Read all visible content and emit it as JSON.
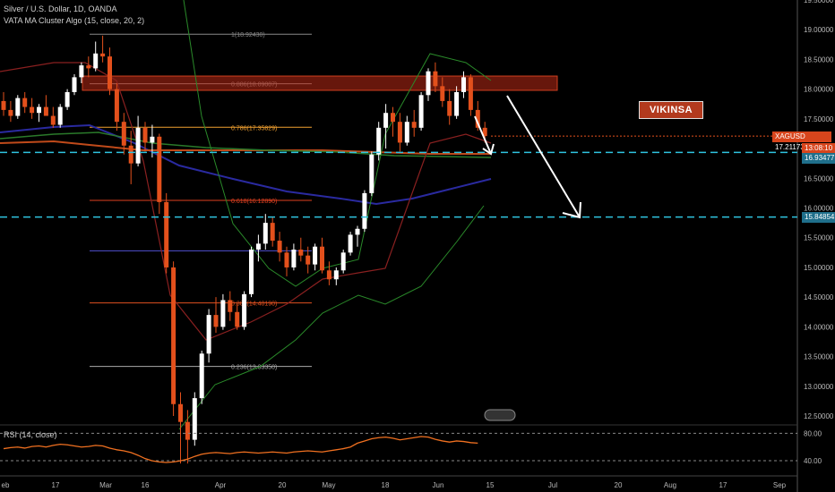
{
  "header": {
    "symbol_line": "Silver / U.S. Dollar, 1D, OANDA",
    "indicator_line": "VATA MA Cluster Algo (15, close, 20, 2)"
  },
  "rsi": {
    "label": "RSI (14, close)",
    "levels": [
      "80.00",
      "40.00"
    ],
    "values": [
      52,
      54,
      55,
      53,
      56,
      57,
      55,
      58,
      60,
      59,
      57,
      55,
      56,
      58,
      57,
      53,
      50,
      48,
      45,
      40,
      34,
      30,
      28,
      27,
      28,
      30,
      33,
      38,
      42,
      44,
      45,
      44,
      43,
      45,
      46,
      45,
      44,
      45,
      46,
      45,
      44,
      46,
      47,
      48,
      47,
      46,
      48,
      50,
      52,
      55,
      62,
      66,
      70,
      72,
      73,
      71,
      68,
      70,
      72,
      74,
      73,
      69,
      66,
      64,
      66,
      65,
      63,
      62
    ]
  },
  "watermark": {
    "text": "VIKINSA"
  },
  "price_tags": {
    "current_symbol": "XAGUSD",
    "current_price": "17.21173",
    "countdown": "13:08:10",
    "level_high": "16.93477",
    "level_low": "15.84854"
  },
  "fib_levels": [
    {
      "label": "1(18.92430)",
      "price": 18.9243,
      "color": "#888888"
    },
    {
      "label": "0.886(18.09007)",
      "price": 18.09007,
      "color": "#ffffff"
    },
    {
      "label": "0.786(17.35829)",
      "price": 17.35829,
      "color": "#f0a030"
    },
    {
      "label": "0.618(16.12890)",
      "price": 16.1289,
      "color": "#e04020"
    },
    {
      "label": "",
      "price": 15.28,
      "color": "#5050d0"
    },
    {
      "label": "0.382(14.40190)",
      "price": 14.4019,
      "color": "#e05020"
    },
    {
      "label": "0.236(13.33350)",
      "price": 13.3335,
      "color": "#aaaaaa"
    }
  ],
  "chart_data": {
    "type": "candlestick",
    "symbol": "XAGUSD",
    "y_axis_ticks": [
      "19.50000",
      "19.00000",
      "18.50000",
      "18.00000",
      "17.50000",
      "17.00000",
      "16.50000",
      "16.00000",
      "15.50000",
      "15.00000",
      "14.50000",
      "14.00000",
      "13.50000",
      "13.00000",
      "12.50000"
    ],
    "ylim": [
      12.35,
      19.5
    ],
    "x_axis_ticks": [
      "eb",
      "17",
      "Mar",
      "16",
      "Apr",
      "20",
      "May",
      "18",
      "Jun",
      "15",
      "Jul",
      "20",
      "Aug",
      "17",
      "Sep"
    ],
    "ohlc": [
      [
        17.8,
        17.95,
        17.55,
        17.65
      ],
      [
        17.65,
        17.8,
        17.45,
        17.55
      ],
      [
        17.55,
        17.9,
        17.5,
        17.85
      ],
      [
        17.85,
        17.95,
        17.6,
        17.7
      ],
      [
        17.7,
        17.85,
        17.5,
        17.6
      ],
      [
        17.6,
        17.75,
        17.45,
        17.7
      ],
      [
        17.7,
        17.9,
        17.6,
        17.55
      ],
      [
        17.55,
        17.7,
        17.35,
        17.4
      ],
      [
        17.4,
        17.75,
        17.35,
        17.7
      ],
      [
        17.7,
        18.0,
        17.65,
        17.95
      ],
      [
        17.95,
        18.25,
        17.9,
        18.2
      ],
      [
        18.2,
        18.45,
        18.1,
        18.4
      ],
      [
        18.4,
        18.55,
        18.2,
        18.35
      ],
      [
        18.35,
        18.8,
        18.3,
        18.6
      ],
      [
        18.6,
        18.9,
        18.45,
        18.55
      ],
      [
        18.55,
        18.7,
        17.9,
        18.0
      ],
      [
        18.0,
        18.1,
        17.3,
        17.45
      ],
      [
        17.45,
        17.6,
        16.9,
        17.05
      ],
      [
        17.05,
        17.3,
        16.4,
        16.75
      ],
      [
        16.75,
        17.55,
        16.7,
        17.35
      ],
      [
        17.35,
        17.45,
        16.95,
        17.1
      ],
      [
        17.1,
        17.4,
        16.85,
        17.2
      ],
      [
        17.2,
        17.25,
        15.9,
        16.1
      ],
      [
        16.1,
        16.25,
        14.9,
        15.0
      ],
      [
        15.0,
        15.1,
        12.5,
        12.7
      ],
      [
        12.7,
        12.9,
        11.7,
        12.4
      ],
      [
        12.4,
        12.6,
        11.7,
        12.1
      ],
      [
        12.1,
        12.9,
        12.0,
        12.8
      ],
      [
        12.8,
        13.6,
        12.7,
        13.55
      ],
      [
        13.55,
        14.3,
        13.4,
        14.2
      ],
      [
        14.2,
        14.5,
        13.9,
        14.0
      ],
      [
        14.0,
        14.55,
        13.95,
        14.45
      ],
      [
        14.45,
        14.6,
        14.1,
        14.25
      ],
      [
        14.25,
        14.4,
        13.95,
        14.0
      ],
      [
        14.0,
        14.6,
        13.95,
        14.55
      ],
      [
        14.55,
        15.35,
        14.5,
        15.3
      ],
      [
        15.3,
        15.55,
        15.1,
        15.4
      ],
      [
        15.4,
        15.9,
        15.3,
        15.75
      ],
      [
        15.75,
        15.85,
        15.35,
        15.45
      ],
      [
        15.45,
        15.6,
        15.1,
        15.25
      ],
      [
        15.25,
        15.35,
        14.85,
        15.0
      ],
      [
        15.0,
        15.4,
        14.95,
        15.3
      ],
      [
        15.3,
        15.5,
        15.1,
        15.2
      ],
      [
        15.2,
        15.35,
        14.9,
        15.05
      ],
      [
        15.05,
        15.4,
        14.95,
        15.35
      ],
      [
        15.35,
        15.5,
        14.9,
        14.95
      ],
      [
        14.95,
        15.1,
        14.7,
        14.8
      ],
      [
        14.8,
        15.0,
        14.7,
        14.95
      ],
      [
        14.95,
        15.3,
        14.9,
        15.25
      ],
      [
        15.25,
        15.6,
        15.2,
        15.55
      ],
      [
        15.55,
        15.7,
        15.35,
        15.65
      ],
      [
        15.65,
        16.3,
        15.6,
        16.25
      ],
      [
        16.25,
        16.95,
        16.2,
        16.9
      ],
      [
        16.9,
        17.45,
        16.8,
        17.35
      ],
      [
        17.35,
        17.75,
        17.0,
        17.6
      ],
      [
        17.6,
        17.7,
        17.2,
        17.45
      ],
      [
        17.45,
        17.6,
        16.95,
        17.1
      ],
      [
        17.1,
        17.55,
        17.05,
        17.45
      ],
      [
        17.45,
        17.65,
        17.2,
        17.35
      ],
      [
        17.35,
        17.95,
        17.3,
        17.9
      ],
      [
        17.9,
        18.35,
        17.8,
        18.3
      ],
      [
        18.3,
        18.45,
        17.95,
        18.05
      ],
      [
        18.05,
        18.2,
        17.7,
        17.8
      ],
      [
        17.8,
        18.0,
        17.4,
        17.55
      ],
      [
        17.55,
        18.05,
        17.5,
        17.95
      ],
      [
        17.95,
        18.3,
        17.85,
        18.2
      ],
      [
        18.2,
        18.25,
        17.55,
        17.65
      ],
      [
        17.65,
        17.8,
        17.3,
        17.35
      ],
      [
        17.35,
        17.45,
        17.1,
        17.21
      ]
    ],
    "series": [
      {
        "name": "",
        "values": [
          16.9,
          16.9,
          16.9,
          16.9,
          16.9,
          16.9,
          16.9,
          16.9,
          16.9,
          16.9
        ]
      },
      {
        "name": "",
        "values": []
      }
    ],
    "rectangle_zone": {
      "top": 18.22,
      "bottom": 17.98
    },
    "horizontal_levels": [
      16.93477,
      15.84854
    ]
  }
}
